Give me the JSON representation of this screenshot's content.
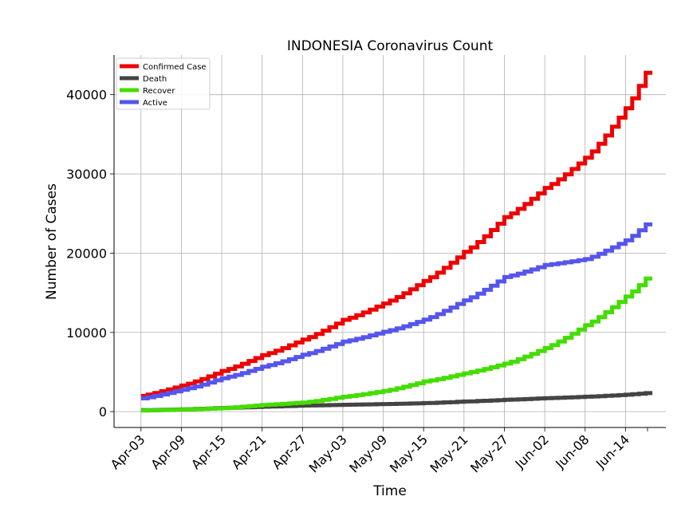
{
  "chart_data": {
    "type": "line",
    "title": "INDONESIA Coronavirus Count",
    "xlabel": "Time",
    "ylabel": "Number of Cases",
    "x_ticks": [
      "Apr-03",
      "Apr-09",
      "Apr-15",
      "Apr-21",
      "Apr-27",
      "May-03",
      "May-09",
      "May-15",
      "May-21",
      "May-27",
      "Jun-02",
      "Jun-08",
      "Jun-14"
    ],
    "y_ticks": [
      0,
      10000,
      20000,
      30000,
      40000
    ],
    "xlim": [
      "2020-03-30",
      "2020-06-20"
    ],
    "ylim": [
      -2000,
      45000
    ],
    "grid": true,
    "legend_position": "top-left",
    "x": [
      "2020-04-03",
      "2020-04-09",
      "2020-04-15",
      "2020-04-21",
      "2020-04-27",
      "2020-05-03",
      "2020-05-09",
      "2020-05-15",
      "2020-05-21",
      "2020-05-27",
      "2020-06-02",
      "2020-06-08",
      "2020-06-14",
      "2020-06-17"
    ],
    "series": [
      {
        "name": "Confirmed Case",
        "color": "#ee0000",
        "values": [
          1986,
          3293,
          5136,
          7135,
          9096,
          11587,
          13645,
          16496,
          20162,
          24538,
          28233,
          32033,
          38277,
          42762
        ]
      },
      {
        "name": "Death",
        "color": "#444444",
        "values": [
          181,
          280,
          469,
          616,
          765,
          864,
          959,
          1076,
          1278,
          1496,
          1698,
          1883,
          2134,
          2339
        ]
      },
      {
        "name": "Recover",
        "color": "#44dd00",
        "values": [
          134,
          252,
          446,
          842,
          1151,
          1876,
          2607,
          3803,
          4838,
          6057,
          8026,
          10904,
          14531,
          16798
        ]
      },
      {
        "name": "Active",
        "color": "#5555ee",
        "values": [
          1671,
          2761,
          4221,
          5677,
          7180,
          8847,
          10079,
          11617,
          14046,
          16985,
          18509,
          19246,
          21612,
          23625
        ]
      }
    ]
  }
}
